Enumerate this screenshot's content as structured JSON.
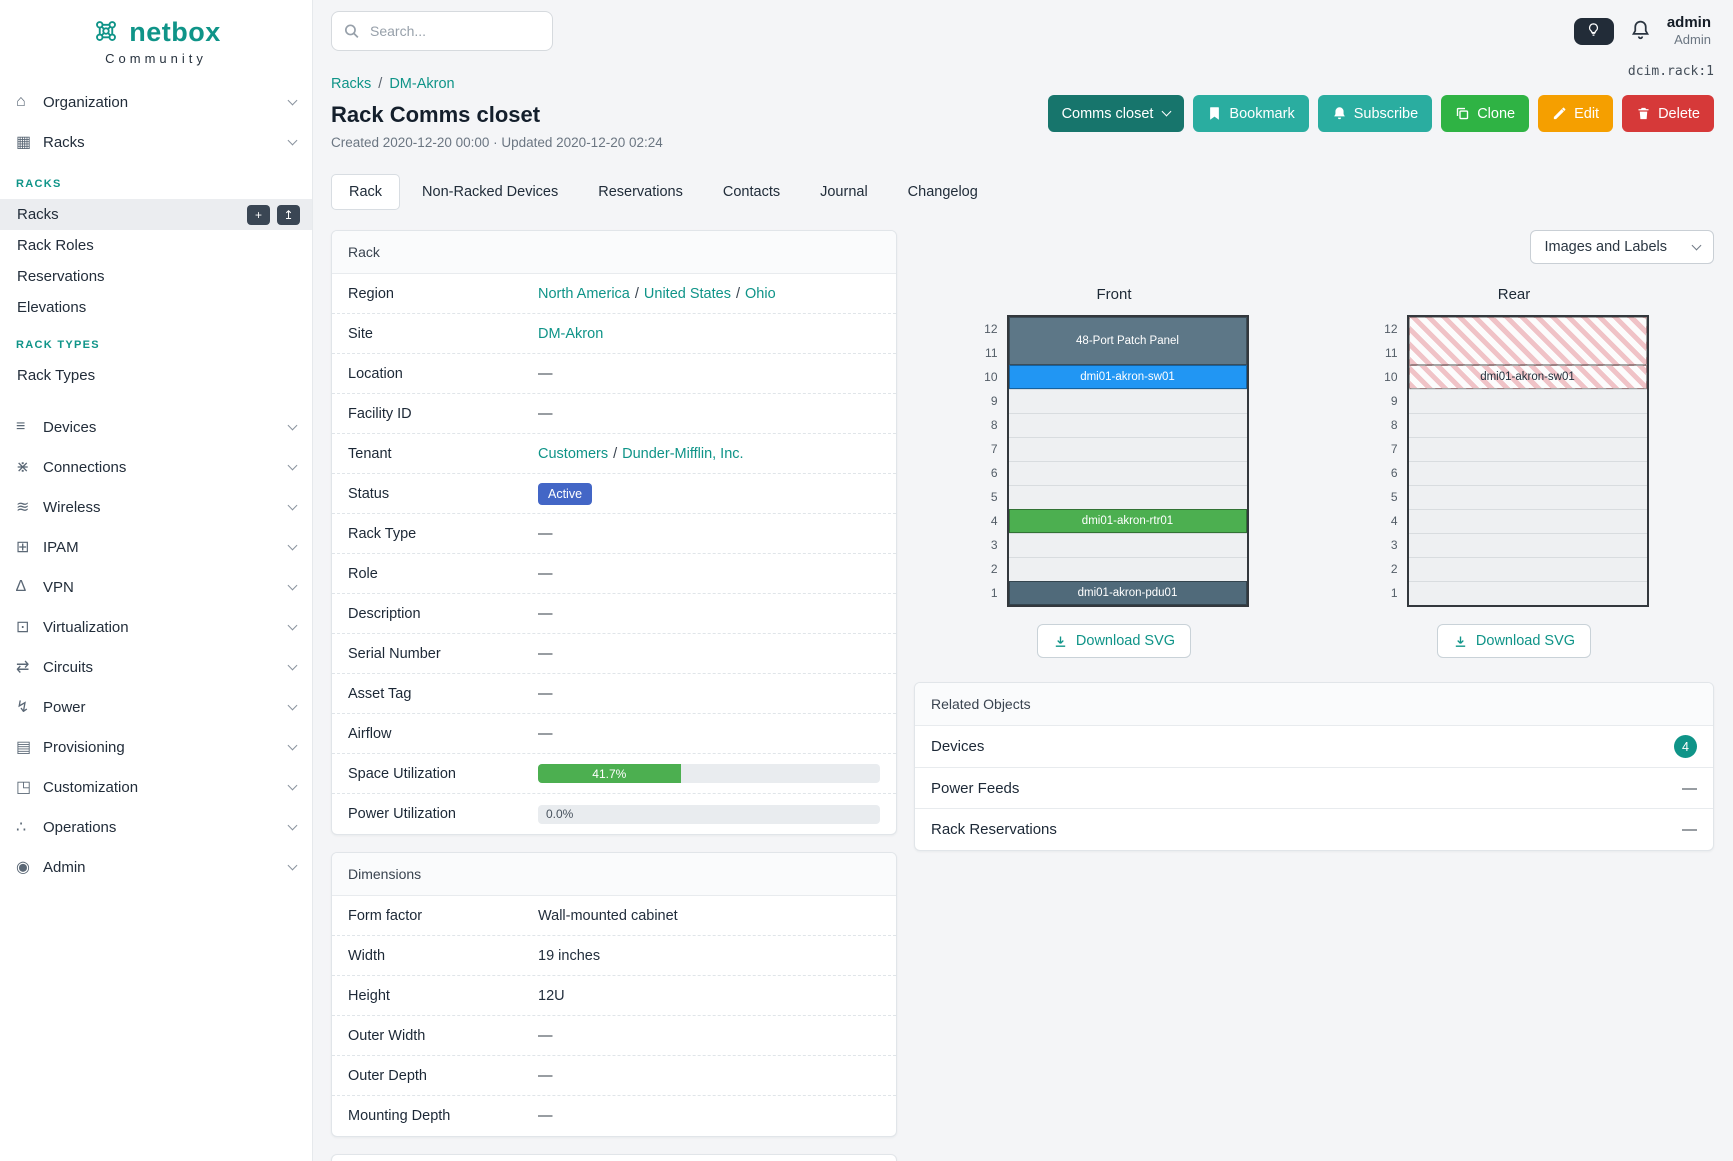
{
  "colors": {
    "accent_teal": "#0f9488",
    "button_teal": "#2aada0",
    "button_dark_teal": "#17756c",
    "button_green": "#2fb344",
    "button_yellow": "#f59f00",
    "button_red": "#d63939",
    "active_badge_blue": "#4366c6",
    "progress_green": "#4caf50"
  },
  "ui": {
    "dash": "—",
    "sep": "/"
  },
  "brand": {
    "logo": "netbox",
    "tagline": "Community"
  },
  "topbar": {
    "search_placeholder": "Search...",
    "user_name": "admin",
    "user_role": "Admin"
  },
  "sidebar": {
    "groups_top": [
      {
        "label": "Organization",
        "icon": "building-icon",
        "glyph": "⌂"
      },
      {
        "label": "Racks",
        "icon": "rack-icon",
        "glyph": "▦"
      }
    ],
    "sections": [
      {
        "title": "RACKS",
        "items": [
          {
            "label": "Racks",
            "active": true,
            "buttons": [
              {
                "name": "add-rack-button",
                "glyph": "+"
              },
              {
                "name": "import-rack-button",
                "glyph": "↥"
              }
            ]
          },
          {
            "label": "Rack Roles"
          },
          {
            "label": "Reservations"
          },
          {
            "label": "Elevations"
          }
        ]
      },
      {
        "title": "RACK TYPES",
        "items": [
          {
            "label": "Rack Types"
          }
        ]
      }
    ],
    "groups_bottom": [
      {
        "label": "Devices",
        "icon": "devices-icon",
        "glyph": "≡"
      },
      {
        "label": "Connections",
        "icon": "connections-icon",
        "glyph": "⋇"
      },
      {
        "label": "Wireless",
        "icon": "wireless-icon",
        "glyph": "≋"
      },
      {
        "label": "IPAM",
        "icon": "ipam-icon",
        "glyph": "⊞"
      },
      {
        "label": "VPN",
        "icon": "vpn-icon",
        "glyph": "∆"
      },
      {
        "label": "Virtualization",
        "icon": "virtualization-icon",
        "glyph": "⊡"
      },
      {
        "label": "Circuits",
        "icon": "circuits-icon",
        "glyph": "⇄"
      },
      {
        "label": "Power",
        "icon": "power-icon",
        "glyph": "↯"
      },
      {
        "label": "Provisioning",
        "icon": "provisioning-icon",
        "glyph": "▤"
      },
      {
        "label": "Customization",
        "icon": "customization-icon",
        "glyph": "◳"
      },
      {
        "label": "Operations",
        "icon": "operations-icon",
        "glyph": "∴"
      },
      {
        "label": "Admin",
        "icon": "admin-icon",
        "glyph": "◉"
      }
    ]
  },
  "page": {
    "breadcrumb": [
      {
        "label": "Racks"
      },
      {
        "label": "DM-Akron"
      }
    ],
    "object_id": "dcim.rack:1",
    "title": "Rack Comms closet",
    "meta": "Created 2020-12-20 00:00 · Updated 2020-12-20 02:24",
    "actions": [
      {
        "label": "Comms closet",
        "style": "dark-teal",
        "caret": true
      },
      {
        "label": "Bookmark",
        "style": "teal",
        "icon": "bookmark"
      },
      {
        "label": "Subscribe",
        "style": "teal",
        "icon": "bell"
      },
      {
        "label": "Clone",
        "style": "green",
        "icon": "copy"
      },
      {
        "label": "Edit",
        "style": "yellow",
        "icon": "pencil"
      },
      {
        "label": "Delete",
        "style": "red",
        "icon": "trash"
      }
    ],
    "tabs": [
      {
        "label": "Rack",
        "active": true
      },
      {
        "label": "Non-Racked Devices"
      },
      {
        "label": "Reservations"
      },
      {
        "label": "Contacts"
      },
      {
        "label": "Journal"
      },
      {
        "label": "Changelog"
      }
    ]
  },
  "rack_panel": {
    "title": "Rack",
    "rows": [
      {
        "label": "Region",
        "type": "links",
        "parts": [
          "North America",
          "United States",
          "Ohio"
        ]
      },
      {
        "label": "Site",
        "type": "links",
        "parts": [
          "DM-Akron"
        ]
      },
      {
        "label": "Location",
        "type": "dash"
      },
      {
        "label": "Facility ID",
        "type": "dash"
      },
      {
        "label": "Tenant",
        "type": "links",
        "parts": [
          "Customers",
          "Dunder-Mifflin, Inc."
        ]
      },
      {
        "label": "Status",
        "type": "badge",
        "value": "Active",
        "bg": "#4366c6"
      },
      {
        "label": "Rack Type",
        "type": "dash"
      },
      {
        "label": "Role",
        "type": "dash"
      },
      {
        "label": "Description",
        "type": "dash"
      },
      {
        "label": "Serial Number",
        "type": "dash"
      },
      {
        "label": "Asset Tag",
        "type": "dash"
      },
      {
        "label": "Airflow",
        "type": "dash"
      },
      {
        "label": "Space Utilization",
        "type": "progress",
        "pct": 41.7,
        "text": "41.7%",
        "color": "#4caf50"
      },
      {
        "label": "Power Utilization",
        "type": "progress",
        "pct": 0.0,
        "text": "0.0%",
        "color": "#4caf50"
      }
    ]
  },
  "dimensions_panel": {
    "title": "Dimensions",
    "rows": [
      {
        "label": "Form factor",
        "type": "text",
        "value": "Wall-mounted cabinet"
      },
      {
        "label": "Width",
        "type": "text",
        "value": "19 inches"
      },
      {
        "label": "Height",
        "type": "text",
        "value": "12U"
      },
      {
        "label": "Outer Width",
        "type": "dash"
      },
      {
        "label": "Outer Depth",
        "type": "dash"
      },
      {
        "label": "Mounting Depth",
        "type": "dash"
      }
    ]
  },
  "elevations": {
    "toolbar_label": "Images and Labels",
    "download_label": "Download SVG",
    "units": 12,
    "views": [
      {
        "title": "Front",
        "devices": [
          {
            "label": "48-Port Patch Panel",
            "top_unit": 12,
            "u_height": 2,
            "bg": "#5d7787",
            "fg": "#ffffff"
          },
          {
            "label": "dmi01-akron-sw01",
            "top_unit": 10,
            "u_height": 1,
            "bg": "#2196f3",
            "fg": "#ffffff"
          },
          {
            "label": "dmi01-akron-rtr01",
            "top_unit": 4,
            "u_height": 1,
            "bg": "#4caf50",
            "fg": "#ffffff"
          },
          {
            "label": "dmi01-akron-pdu01",
            "top_unit": 1,
            "u_height": 1,
            "bg": "#506a7a",
            "fg": "#ffffff"
          }
        ]
      },
      {
        "title": "Rear",
        "devices": [
          {
            "label": "",
            "top_unit": 12,
            "u_height": 2,
            "hatched": true
          },
          {
            "label": "dmi01-akron-sw01",
            "top_unit": 10,
            "u_height": 1,
            "hatched": true,
            "fg": "#23303c"
          }
        ]
      }
    ]
  },
  "related_panel": {
    "title": "Related Objects",
    "rows": [
      {
        "label": "Devices",
        "type": "count",
        "count": 4
      },
      {
        "label": "Power Feeds",
        "type": "dash"
      },
      {
        "label": "Rack Reservations",
        "type": "dash"
      }
    ]
  }
}
